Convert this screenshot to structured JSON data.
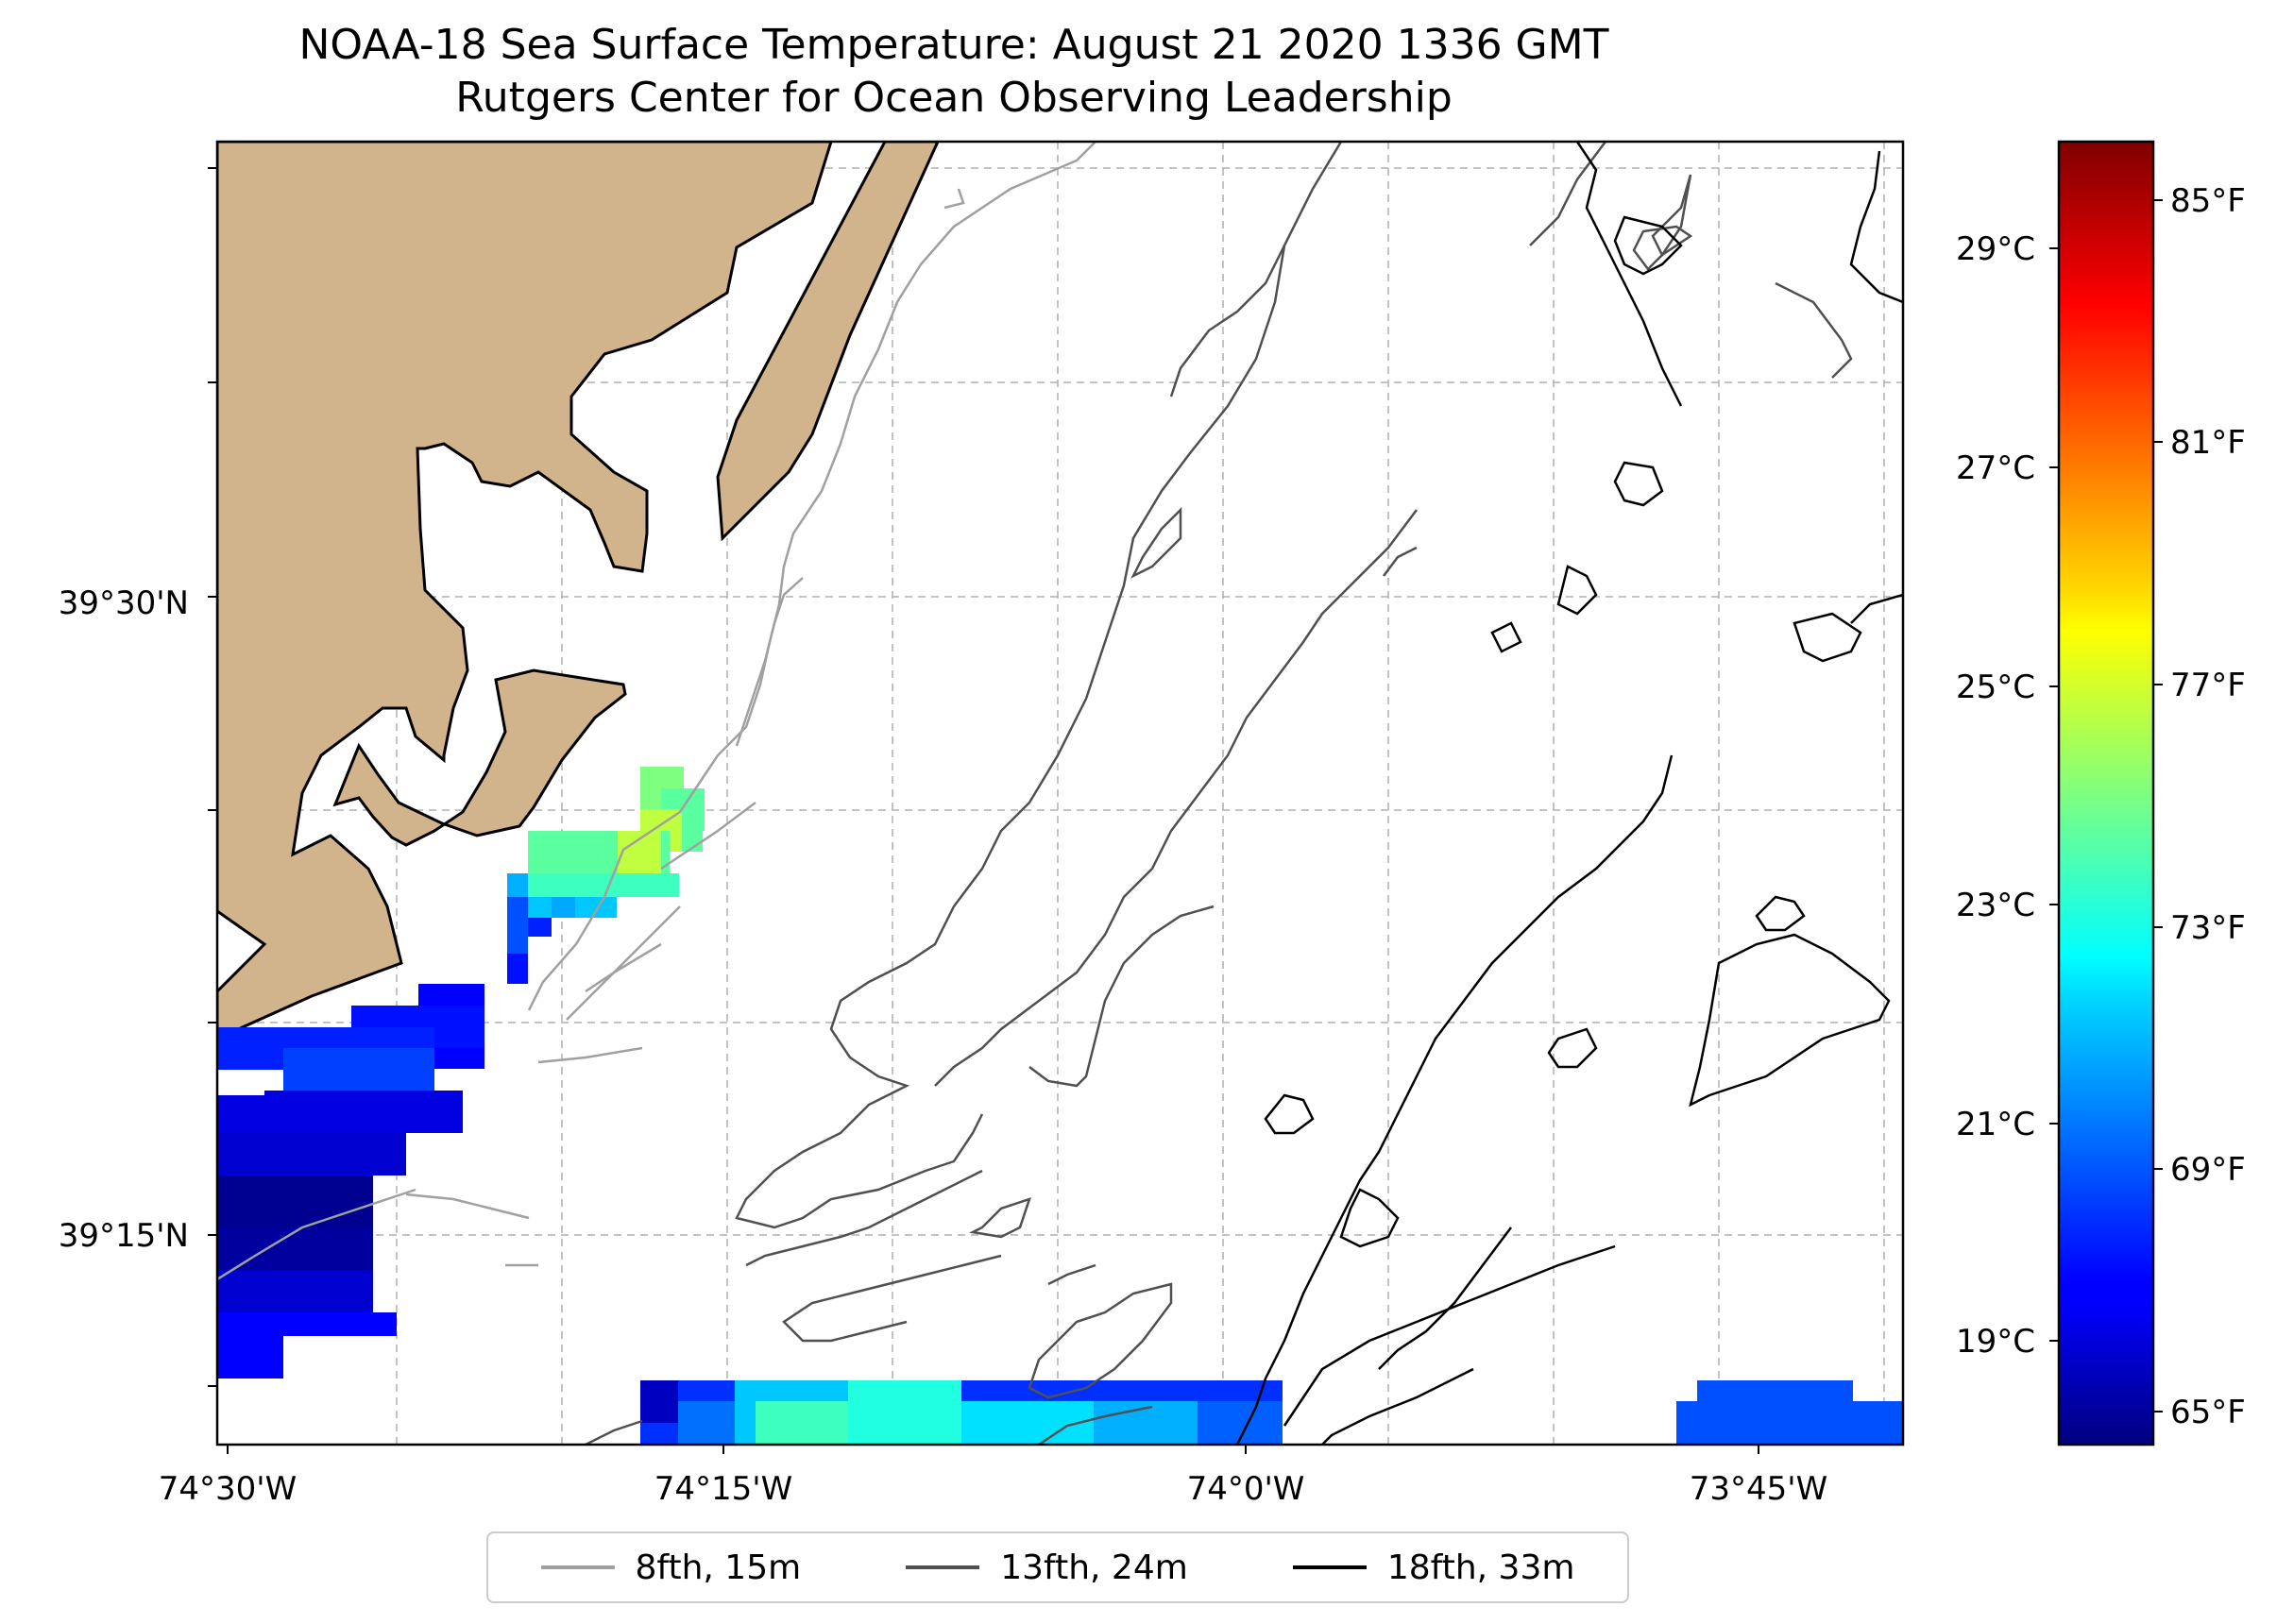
{
  "title": {
    "line1": "NOAA-18 Sea Surface Temperature: August 21 2020 1336 GMT",
    "line2": "Rutgers Center for Ocean Observing Leadership"
  },
  "map": {
    "land_color": "#d2b48c",
    "grid_color": "#b0b0b0",
    "x_ticks": [
      "74°30'W",
      "74°15'W",
      "74°0'W",
      "73°45'W"
    ],
    "y_ticks": [
      "39°30'N",
      "39°15'N"
    ]
  },
  "colorbar": {
    "colormap": "jet",
    "celsius_ticks": [
      "29°C",
      "27°C",
      "25°C",
      "23°C",
      "21°C",
      "19°C"
    ],
    "fahrenheit_ticks": [
      "85°F",
      "81°F",
      "77°F",
      "73°F",
      "69°F",
      "65°F"
    ],
    "celsius_range": [
      18,
      30
    ],
    "fahrenheit_range": [
      64.4,
      86
    ]
  },
  "legend": {
    "items": [
      {
        "label": "8fth, 15m",
        "color": "#a0a0a0"
      },
      {
        "label": "13fth, 24m",
        "color": "#505050"
      },
      {
        "label": "18fth, 33m",
        "color": "#000000"
      }
    ]
  }
}
